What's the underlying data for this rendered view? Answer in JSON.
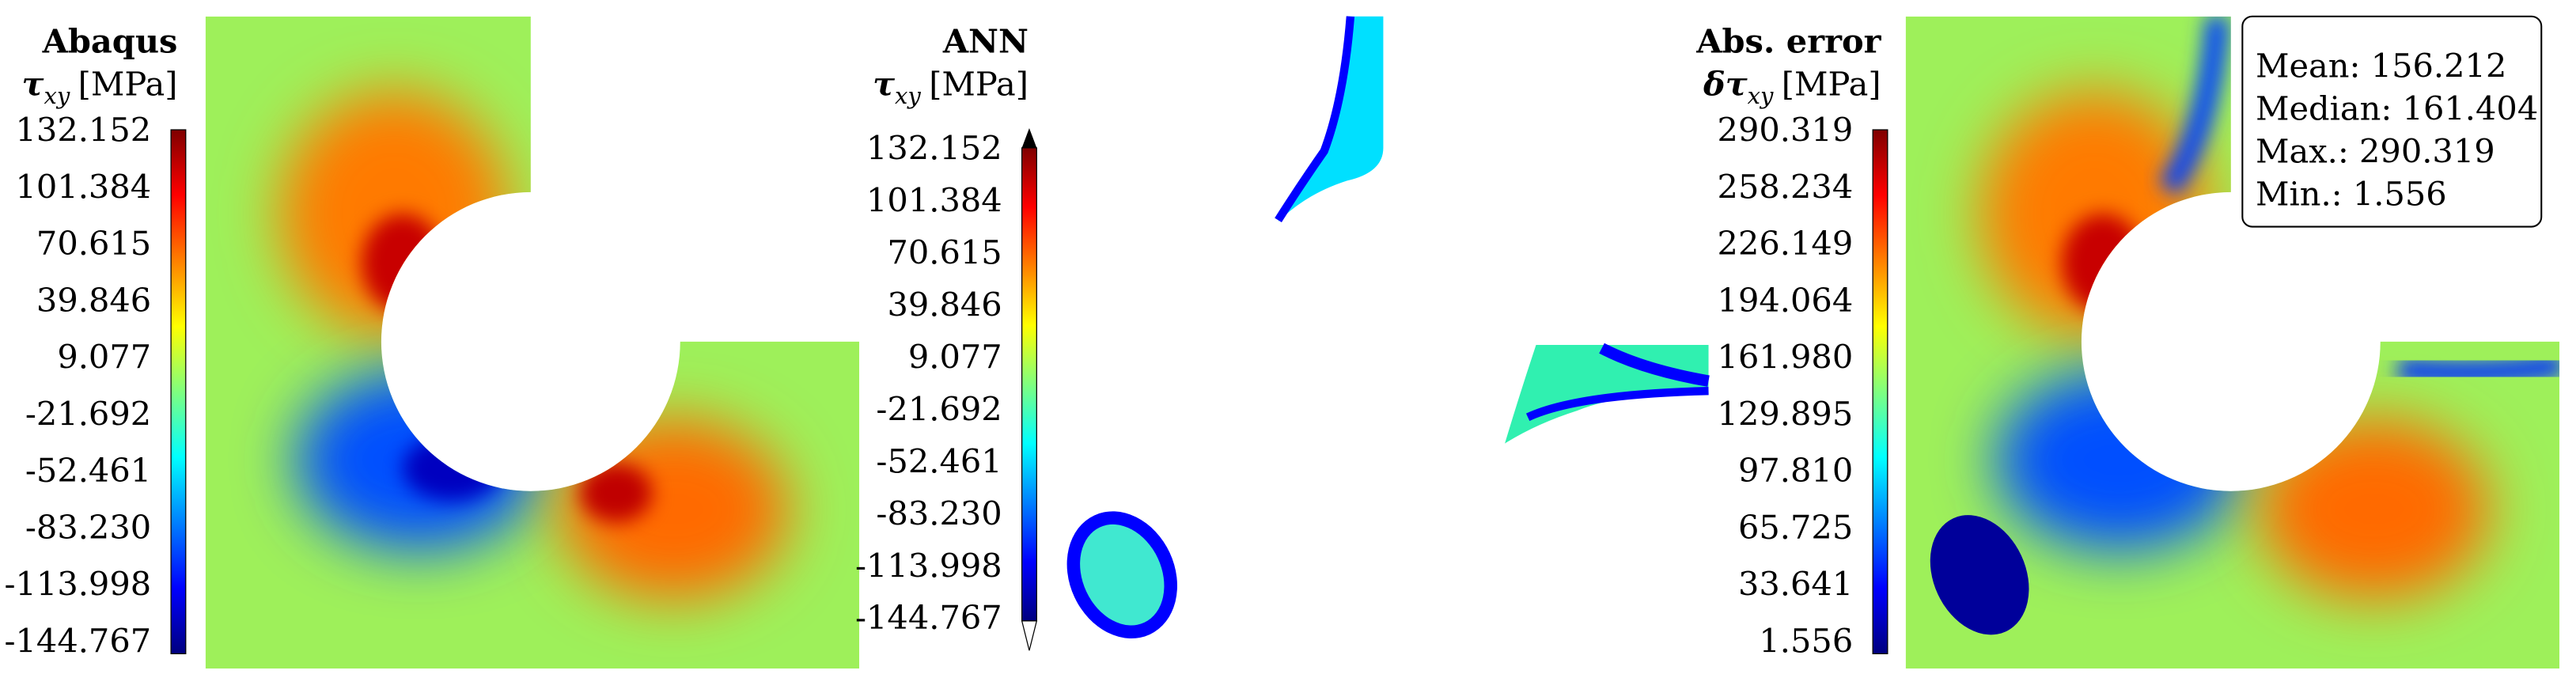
{
  "panels": [
    {
      "title": "Abaqus",
      "symbol": "τ",
      "subscript": "xy",
      "unit": "[MPa]",
      "ticks": [
        "132.152",
        "101.384",
        "70.615",
        "39.846",
        "9.077",
        "-21.692",
        "-52.461",
        "-83.230",
        "-113.998",
        "-144.767"
      ]
    },
    {
      "title": "ANN",
      "symbol": "τ",
      "subscript": "xy",
      "unit": "[MPa]",
      "ticks": [
        "132.152",
        "101.384",
        "70.615",
        "39.846",
        "9.077",
        "-21.692",
        "-52.461",
        "-83.230",
        "-113.998",
        "-144.767"
      ]
    },
    {
      "title": "Abs. error",
      "symbol": "δτ",
      "subscript": "xy",
      "unit": "[MPa]",
      "ticks": [
        "290.319",
        "258.234",
        "226.149",
        "194.064",
        "161.980",
        "129.895",
        "97.810",
        "65.725",
        "33.641",
        "1.556"
      ]
    }
  ],
  "stats": [
    "Mean: 156.212",
    "Median: 161.404",
    "Max.: 290.319",
    "Min.: 1.556"
  ]
}
